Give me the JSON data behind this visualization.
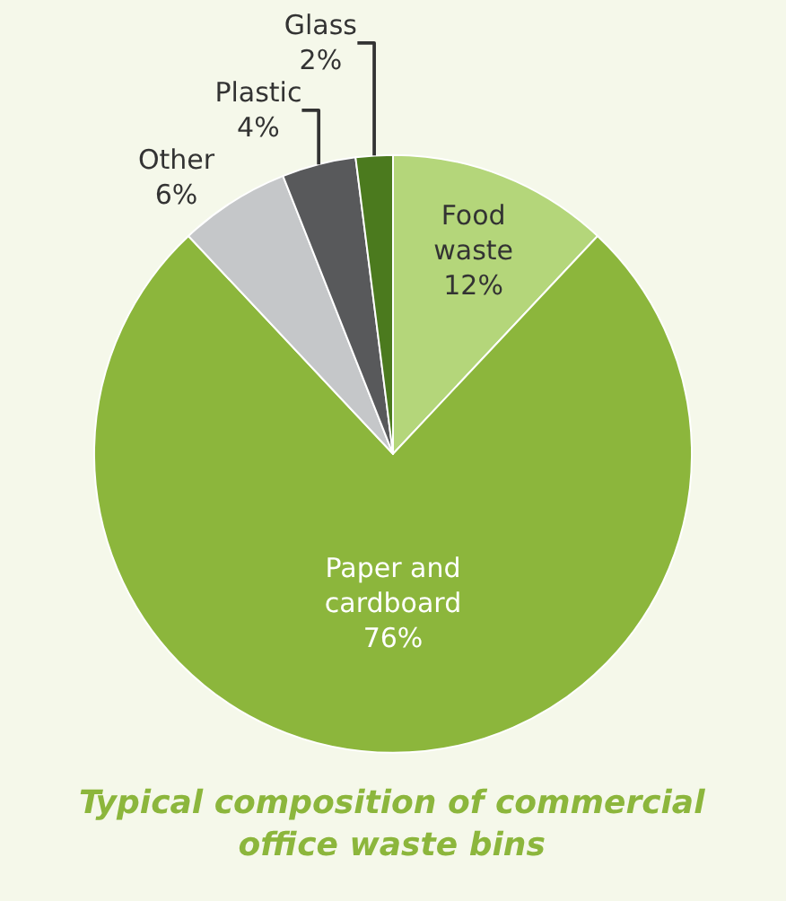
{
  "chart_data": {
    "type": "pie",
    "title": "Typical composition of commercial\noffice waste bins",
    "categories": [
      "Food\nwaste",
      "Paper and\ncardboard",
      "Other",
      "Plastic",
      "Glass"
    ],
    "values": [
      12,
      76,
      6,
      4,
      2
    ],
    "value_labels": [
      "12%",
      "76%",
      "6%",
      "4%",
      "2%"
    ],
    "colors": [
      "#b4d67a",
      "#8cb63c",
      "#c5c7c9",
      "#58595b",
      "#4b7a1e"
    ],
    "legend": false
  }
}
